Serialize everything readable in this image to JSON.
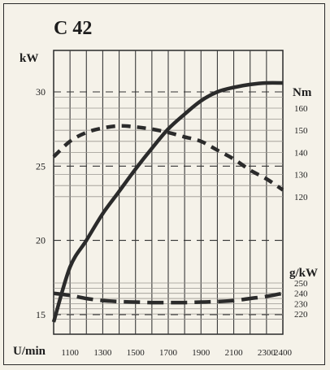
{
  "chart_data": {
    "type": "line",
    "title": "C 42",
    "xlabel": "U/min",
    "x_ticks": [
      1100,
      1300,
      1500,
      1700,
      1900,
      2100,
      2300,
      2400
    ],
    "xlim": [
      1000,
      2400
    ],
    "left_axis": {
      "label": "kW",
      "ticks": [
        15,
        20,
        25,
        30
      ],
      "ylim": [
        14.5,
        32.5
      ]
    },
    "right_axis_torque": {
      "label": "Nm",
      "ticks": [
        120,
        130,
        140,
        150,
        160
      ]
    },
    "right_axis_consumption": {
      "label": "g/kW",
      "ticks": [
        220,
        230,
        240,
        250
      ]
    },
    "grid": true,
    "series": [
      {
        "name": "kW",
        "axis": "left",
        "style": "solid",
        "x": [
          1000,
          1100,
          1200,
          1300,
          1400,
          1500,
          1600,
          1700,
          1800,
          1900,
          2000,
          2100,
          2200,
          2300,
          2400
        ],
        "values": [
          14.5,
          18.2,
          20.0,
          21.8,
          23.3,
          24.8,
          26.2,
          27.5,
          28.5,
          29.4,
          30.0,
          30.3,
          30.5,
          30.6,
          30.6
        ]
      },
      {
        "name": "Nm",
        "axis": "torque",
        "style": "dashed",
        "x": [
          1000,
          1100,
          1200,
          1300,
          1400,
          1500,
          1600,
          1700,
          1800,
          1900,
          2000,
          2100,
          2200,
          2300,
          2400
        ],
        "values": [
          138,
          145,
          149,
          151,
          152,
          151.5,
          150.5,
          149,
          147,
          145,
          141,
          137,
          132,
          128,
          123
        ]
      },
      {
        "name": "g/kW",
        "axis": "consumption",
        "style": "dashed",
        "x": [
          1000,
          1100,
          1200,
          1300,
          1400,
          1500,
          1600,
          1700,
          1800,
          1900,
          2000,
          2100,
          2200,
          2300,
          2400
        ],
        "values": [
          240,
          238,
          235,
          233,
          232,
          231.5,
          231,
          231,
          231,
          231.5,
          232,
          233,
          235,
          237,
          240
        ]
      }
    ]
  }
}
